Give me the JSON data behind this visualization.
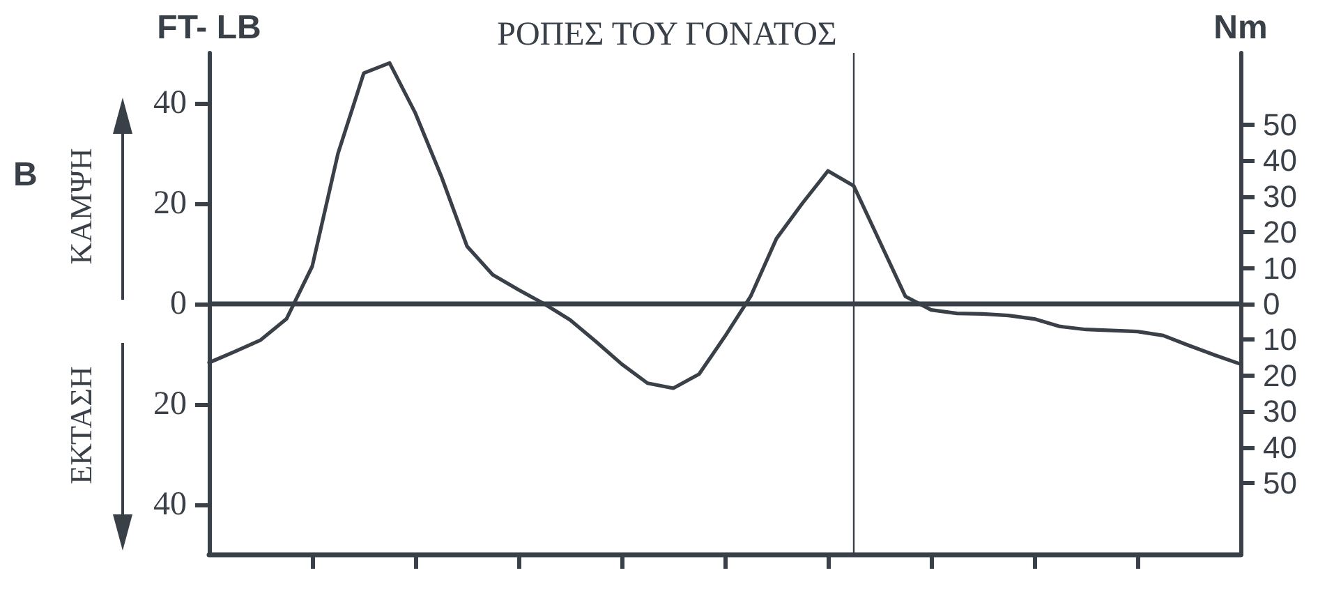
{
  "chart_data": {
    "type": "line",
    "title": "ΡΟΠΕΣ ΤΟΥ ΓΟΝΑΤΟΣ",
    "ylabel": "FT- LB",
    "y2label": "Nm",
    "annotations": [
      "B",
      "ΚΑΜΨΗ",
      "ΕΚΤΑΣΗ"
    ],
    "categories": [
      null,
      null,
      null,
      null,
      null,
      null,
      null,
      null,
      null,
      null,
      null,
      null,
      null,
      null,
      null,
      null,
      null,
      null,
      null,
      null,
      null,
      null,
      null,
      null,
      null,
      null,
      null,
      null,
      null,
      null,
      null,
      null,
      null,
      null,
      null,
      null,
      null,
      null,
      null,
      null,
      null
    ],
    "series": [
      {
        "color": "#3a4048",
        "values": [
          -11.7,
          -9.5,
          -7.2,
          -3,
          7.5,
          30,
          46,
          48,
          38,
          25.5,
          11.5,
          5.8,
          2.8,
          0,
          -3.2,
          -7.5,
          -12,
          -15.8,
          -16.8,
          -14,
          -6.5,
          1.5,
          13,
          20,
          26.5,
          23.5,
          12.5,
          1.5,
          -1.2,
          -1.9,
          -2,
          -2.3,
          -3,
          -4.5,
          -5.1,
          -5.3,
          -5.5,
          -6.3,
          -8.3,
          -10.2,
          -12
        ]
      }
    ],
    "ylim": [
      -50,
      50
    ],
    "yticks": [
      {
        "value": -40,
        "label": "40"
      },
      {
        "value": -20,
        "label": "20"
      },
      0,
      20,
      40
    ],
    "y2lim": [
      -70,
      70
    ],
    "y2ticks": [
      {
        "value": -50,
        "label": "50"
      },
      {
        "value": -40,
        "label": "40"
      },
      {
        "value": -30,
        "label": "30"
      },
      {
        "value": -20,
        "label": "20"
      },
      {
        "value": -10,
        "label": "10"
      },
      0,
      10,
      20,
      30,
      40,
      50
    ],
    "ref_lines": [
      {
        "axis": "y",
        "value": 0
      }
    ],
    "tick_labels": "y",
    "grid": false,
    "marker": "none",
    "line_style": "solid"
  }
}
